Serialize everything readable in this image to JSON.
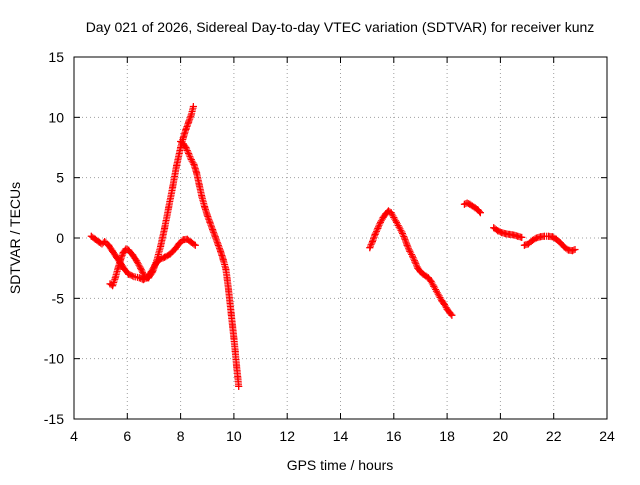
{
  "chart_data": {
    "type": "scatter",
    "title": "Day 021 of 2026, Sidereal Day-to-day VTEC variation (SDTVAR) for receiver kunz",
    "xlabel": "GPS time / hours",
    "ylabel": "SDTVAR / TECUs",
    "xlim": [
      4,
      24
    ],
    "ylim": [
      -15,
      15
    ],
    "xticks": [
      4,
      6,
      8,
      10,
      12,
      14,
      16,
      18,
      20,
      22,
      24
    ],
    "yticks": [
      -15,
      -10,
      -5,
      0,
      5,
      10,
      15
    ],
    "xtick_labels": [
      "4",
      "6",
      "8",
      "10",
      "12",
      "14",
      "16",
      "18",
      "20",
      "22",
      "24"
    ],
    "ytick_labels": [
      "-15",
      "-10",
      "-5",
      "0",
      "5",
      "10",
      "15"
    ],
    "grid": true,
    "marker": "+",
    "series": [
      {
        "name": "arc-1-lower",
        "color": "#ff0000",
        "points": [
          [
            4.65,
            0.15
          ],
          [
            4.8,
            -0.1
          ],
          [
            4.95,
            -0.35
          ],
          [
            5.05,
            -0.5
          ],
          [
            5.15,
            -0.3
          ],
          [
            5.3,
            -0.6
          ],
          [
            5.45,
            -1.1
          ],
          [
            5.6,
            -1.6
          ],
          [
            5.75,
            -2.1
          ],
          [
            5.9,
            -2.6
          ],
          [
            6.05,
            -3.0
          ],
          [
            6.25,
            -3.2
          ],
          [
            6.45,
            -3.3
          ],
          [
            6.6,
            -3.45
          ],
          [
            6.75,
            -3.3
          ],
          [
            6.9,
            -2.8
          ],
          [
            7.05,
            -2.2
          ],
          [
            7.2,
            -1.8
          ],
          [
            7.4,
            -1.6
          ],
          [
            7.6,
            -1.35
          ],
          [
            7.8,
            -0.9
          ],
          [
            7.95,
            -0.45
          ],
          [
            8.1,
            -0.15
          ],
          [
            8.25,
            -0.1
          ],
          [
            8.4,
            -0.35
          ],
          [
            8.55,
            -0.6
          ]
        ]
      },
      {
        "name": "arc-1-upper",
        "color": "#ff0000",
        "points": [
          [
            5.35,
            -3.8
          ],
          [
            5.45,
            -3.95
          ],
          [
            5.55,
            -3.3
          ],
          [
            5.65,
            -2.5
          ],
          [
            5.75,
            -1.8
          ],
          [
            5.85,
            -1.2
          ],
          [
            5.95,
            -0.9
          ],
          [
            6.05,
            -1.0
          ],
          [
            6.2,
            -1.4
          ],
          [
            6.35,
            -1.9
          ],
          [
            6.5,
            -2.5
          ],
          [
            6.65,
            -3.2
          ],
          [
            6.8,
            -3.3
          ],
          [
            6.95,
            -2.8
          ],
          [
            7.1,
            -1.9
          ],
          [
            7.25,
            -0.7
          ],
          [
            7.4,
            0.8
          ],
          [
            7.55,
            2.5
          ],
          [
            7.7,
            4.2
          ],
          [
            7.85,
            6.0
          ],
          [
            8.0,
            7.5
          ],
          [
            8.1,
            8.3
          ],
          [
            8.2,
            9.0
          ],
          [
            8.3,
            9.6
          ],
          [
            8.4,
            10.2
          ],
          [
            8.48,
            10.9
          ]
        ]
      },
      {
        "name": "arc-1-drop",
        "color": "#ff0000",
        "points": [
          [
            8.0,
            8.0
          ],
          [
            8.1,
            7.8
          ],
          [
            8.2,
            7.5
          ],
          [
            8.3,
            7.0
          ],
          [
            8.4,
            6.5
          ],
          [
            8.5,
            6.1
          ],
          [
            8.6,
            5.4
          ],
          [
            8.7,
            4.4
          ],
          [
            8.8,
            3.4
          ],
          [
            8.9,
            2.6
          ],
          [
            9.0,
            1.9
          ],
          [
            9.1,
            1.3
          ],
          [
            9.2,
            0.7
          ],
          [
            9.3,
            0.1
          ],
          [
            9.4,
            -0.5
          ],
          [
            9.5,
            -1.1
          ],
          [
            9.6,
            -1.8
          ],
          [
            9.7,
            -2.6
          ],
          [
            9.75,
            -3.4
          ],
          [
            9.8,
            -4.3
          ],
          [
            9.85,
            -5.3
          ],
          [
            9.9,
            -6.3
          ],
          [
            9.95,
            -7.3
          ],
          [
            10.0,
            -8.3
          ],
          [
            10.05,
            -9.4
          ],
          [
            10.1,
            -10.6
          ],
          [
            10.15,
            -11.6
          ],
          [
            10.18,
            -12.3
          ]
        ]
      },
      {
        "name": "arc-2",
        "color": "#ff0000",
        "points": [
          [
            15.1,
            -0.8
          ],
          [
            15.2,
            -0.3
          ],
          [
            15.3,
            0.3
          ],
          [
            15.4,
            0.8
          ],
          [
            15.5,
            1.3
          ],
          [
            15.6,
            1.7
          ],
          [
            15.7,
            2.0
          ],
          [
            15.8,
            2.25
          ],
          [
            15.9,
            2.1
          ],
          [
            16.0,
            1.7
          ],
          [
            16.1,
            1.3
          ],
          [
            16.2,
            0.9
          ],
          [
            16.3,
            0.5
          ],
          [
            16.4,
            0.0
          ],
          [
            16.5,
            -0.6
          ],
          [
            16.6,
            -1.1
          ],
          [
            16.7,
            -1.5
          ],
          [
            16.8,
            -2.0
          ],
          [
            16.9,
            -2.5
          ],
          [
            17.0,
            -2.8
          ],
          [
            17.1,
            -3.0
          ],
          [
            17.2,
            -3.15
          ],
          [
            17.3,
            -3.3
          ],
          [
            17.4,
            -3.6
          ],
          [
            17.5,
            -4.0
          ],
          [
            17.6,
            -4.4
          ],
          [
            17.7,
            -4.8
          ],
          [
            17.8,
            -5.2
          ],
          [
            17.9,
            -5.5
          ],
          [
            18.0,
            -5.9
          ],
          [
            18.1,
            -6.2
          ],
          [
            18.18,
            -6.4
          ]
        ]
      },
      {
        "name": "arc-3",
        "color": "#ff0000",
        "points": [
          [
            18.65,
            2.8
          ],
          [
            18.75,
            2.9
          ],
          [
            18.85,
            2.8
          ],
          [
            18.95,
            2.65
          ],
          [
            19.05,
            2.5
          ],
          [
            19.15,
            2.35
          ],
          [
            19.25,
            2.1
          ]
        ]
      },
      {
        "name": "arc-4",
        "color": "#ff0000",
        "points": [
          [
            19.75,
            0.85
          ],
          [
            19.9,
            0.6
          ],
          [
            20.05,
            0.45
          ],
          [
            20.2,
            0.35
          ],
          [
            20.35,
            0.3
          ],
          [
            20.5,
            0.25
          ],
          [
            20.65,
            0.15
          ],
          [
            20.8,
            0.05
          ]
        ]
      },
      {
        "name": "arc-5",
        "color": "#ff0000",
        "points": [
          [
            20.9,
            -0.6
          ],
          [
            21.05,
            -0.5
          ],
          [
            21.2,
            -0.2
          ],
          [
            21.35,
            0.0
          ],
          [
            21.5,
            0.1
          ],
          [
            21.65,
            0.15
          ],
          [
            21.8,
            0.15
          ],
          [
            21.95,
            0.1
          ],
          [
            22.1,
            -0.1
          ],
          [
            22.25,
            -0.4
          ],
          [
            22.4,
            -0.75
          ],
          [
            22.55,
            -1.0
          ],
          [
            22.7,
            -1.05
          ],
          [
            22.8,
            -0.95
          ]
        ]
      }
    ]
  }
}
